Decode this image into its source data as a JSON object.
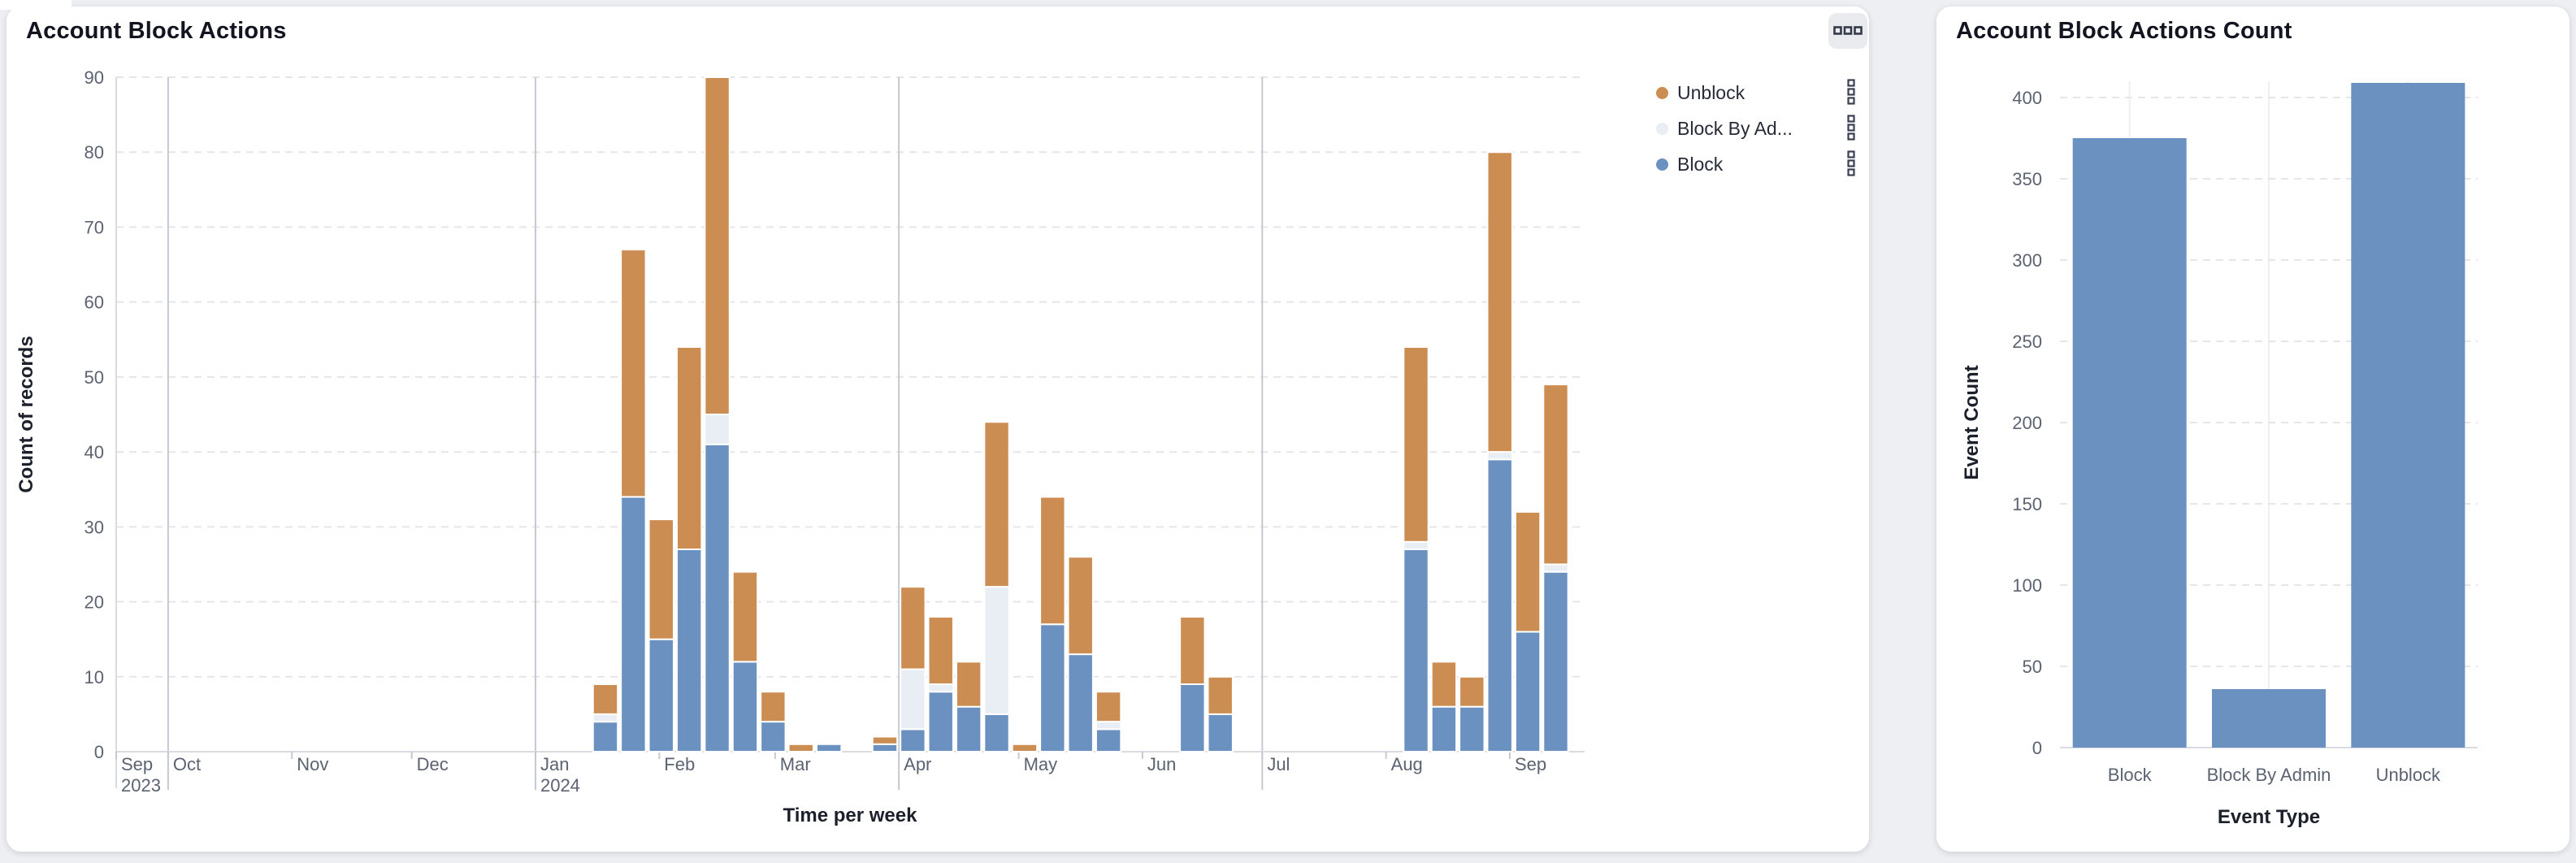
{
  "page": {
    "background": "#edeff2"
  },
  "left_panel": {
    "title": "Account Block Actions",
    "menu_button_icon": "grid-squares-icon",
    "legend": {
      "items": [
        {
          "label": "Unblock",
          "color": "#cc8d52",
          "kebab_icon": "kebab-squares-icon"
        },
        {
          "label": "Block By Ad...",
          "color": "#e9edf4",
          "kebab_icon": "kebab-squares-icon"
        },
        {
          "label": "Block",
          "color": "#6b91c0",
          "kebab_icon": "kebab-squares-icon"
        }
      ]
    }
  },
  "right_panel": {
    "title": "Account Block Actions Count"
  },
  "colors": {
    "block": "#6b91c0",
    "block_by_admin": "#e9edf4",
    "unblock": "#cc8d52",
    "grid_dashed": "#e4e6ea",
    "quarter_rule": "#c6c9d0",
    "axis_line": "#d9dbe0",
    "tick_text": "#5b6270",
    "axis_title_text": "#1c202b",
    "bar_stroke": "#ffffff",
    "vertical_band_line": "#edeff3",
    "menu_icon_stroke": "#343a47"
  },
  "chart_data": [
    {
      "type": "bar",
      "stacked": true,
      "title": "Account Block Actions",
      "xlabel": "Time per week",
      "ylabel": "Count of records",
      "ylim": [
        0,
        90
      ],
      "y_tick_step": 10,
      "grid": true,
      "legend_position": "top-right",
      "legend_entries": [
        "Unblock",
        "Block By Ad...",
        "Block"
      ],
      "stack_order_bottom_to_top": [
        "Block",
        "Block By Admin",
        "Unblock"
      ],
      "series_colors": {
        "Block": "#6b91c0",
        "Block By Admin": "#e9edf4",
        "Unblock": "#cc8d52"
      },
      "x_domain": [
        "2023-09-18",
        "2024-09-20"
      ],
      "quarter_rules": [
        "2023-10-01",
        "2024-01-01",
        "2024-04-01",
        "2024-07-01"
      ],
      "month_ticks": [
        {
          "date": "2023-09-18",
          "label": "Sep",
          "year_label": "2023"
        },
        {
          "date": "2023-10-01",
          "label": "Oct"
        },
        {
          "date": "2023-11-01",
          "label": "Nov"
        },
        {
          "date": "2023-12-01",
          "label": "Dec"
        },
        {
          "date": "2024-01-01",
          "label": "Jan",
          "year_label": "2024"
        },
        {
          "date": "2024-02-01",
          "label": "Feb"
        },
        {
          "date": "2024-03-01",
          "label": "Mar"
        },
        {
          "date": "2024-04-01",
          "label": "Apr"
        },
        {
          "date": "2024-05-01",
          "label": "May"
        },
        {
          "date": "2024-06-01",
          "label": "Jun"
        },
        {
          "date": "2024-07-01",
          "label": "Jul"
        },
        {
          "date": "2024-08-01",
          "label": "Aug"
        },
        {
          "date": "2024-09-01",
          "label": "Sep"
        }
      ],
      "weeks": [
        {
          "week_start": "2024-01-15",
          "Block": 4,
          "Block By Admin": 1,
          "Unblock": 4
        },
        {
          "week_start": "2024-01-22",
          "Block": 34,
          "Block By Admin": 0,
          "Unblock": 33
        },
        {
          "week_start": "2024-01-29",
          "Block": 15,
          "Block By Admin": 0,
          "Unblock": 16
        },
        {
          "week_start": "2024-02-05",
          "Block": 27,
          "Block By Admin": 0,
          "Unblock": 27
        },
        {
          "week_start": "2024-02-12",
          "Block": 41,
          "Block By Admin": 4,
          "Unblock": 45
        },
        {
          "week_start": "2024-02-19",
          "Block": 12,
          "Block By Admin": 0,
          "Unblock": 12
        },
        {
          "week_start": "2024-02-26",
          "Block": 4,
          "Block By Admin": 0,
          "Unblock": 4
        },
        {
          "week_start": "2024-03-04",
          "Block": 0,
          "Block By Admin": 0,
          "Unblock": 1
        },
        {
          "week_start": "2024-03-11",
          "Block": 1,
          "Block By Admin": 0,
          "Unblock": 0
        },
        {
          "week_start": "2024-03-25",
          "Block": 1,
          "Block By Admin": 0,
          "Unblock": 1
        },
        {
          "week_start": "2024-04-01",
          "Block": 3,
          "Block By Admin": 8,
          "Unblock": 11
        },
        {
          "week_start": "2024-04-08",
          "Block": 8,
          "Block By Admin": 1,
          "Unblock": 9
        },
        {
          "week_start": "2024-04-15",
          "Block": 6,
          "Block By Admin": 0,
          "Unblock": 6
        },
        {
          "week_start": "2024-04-22",
          "Block": 5,
          "Block By Admin": 17,
          "Unblock": 22
        },
        {
          "week_start": "2024-04-29",
          "Block": 0,
          "Block By Admin": 0,
          "Unblock": 1
        },
        {
          "week_start": "2024-05-06",
          "Block": 17,
          "Block By Admin": 0,
          "Unblock": 17
        },
        {
          "week_start": "2024-05-13",
          "Block": 13,
          "Block By Admin": 0,
          "Unblock": 13
        },
        {
          "week_start": "2024-05-20",
          "Block": 3,
          "Block By Admin": 1,
          "Unblock": 4
        },
        {
          "week_start": "2024-06-10",
          "Block": 9,
          "Block By Admin": 0,
          "Unblock": 9
        },
        {
          "week_start": "2024-06-17",
          "Block": 5,
          "Block By Admin": 0,
          "Unblock": 5
        },
        {
          "week_start": "2024-08-05",
          "Block": 27,
          "Block By Admin": 1,
          "Unblock": 26
        },
        {
          "week_start": "2024-08-12",
          "Block": 6,
          "Block By Admin": 0,
          "Unblock": 6
        },
        {
          "week_start": "2024-08-19",
          "Block": 6,
          "Block By Admin": 0,
          "Unblock": 4
        },
        {
          "week_start": "2024-08-26",
          "Block": 39,
          "Block By Admin": 1,
          "Unblock": 40
        },
        {
          "week_start": "2024-09-02",
          "Block": 16,
          "Block By Admin": 0,
          "Unblock": 16
        },
        {
          "week_start": "2024-09-09",
          "Block": 24,
          "Block By Admin": 1,
          "Unblock": 24
        }
      ]
    },
    {
      "type": "bar",
      "title": "Account Block Actions Count",
      "xlabel": "Event Type",
      "ylabel": "Event Count",
      "ylim": [
        0,
        400
      ],
      "y_tick_step": 50,
      "grid": true,
      "categories": [
        "Block",
        "Block By Admin",
        "Unblock"
      ],
      "values": [
        375,
        36,
        409
      ],
      "bar_color": "#6b91c0"
    }
  ]
}
